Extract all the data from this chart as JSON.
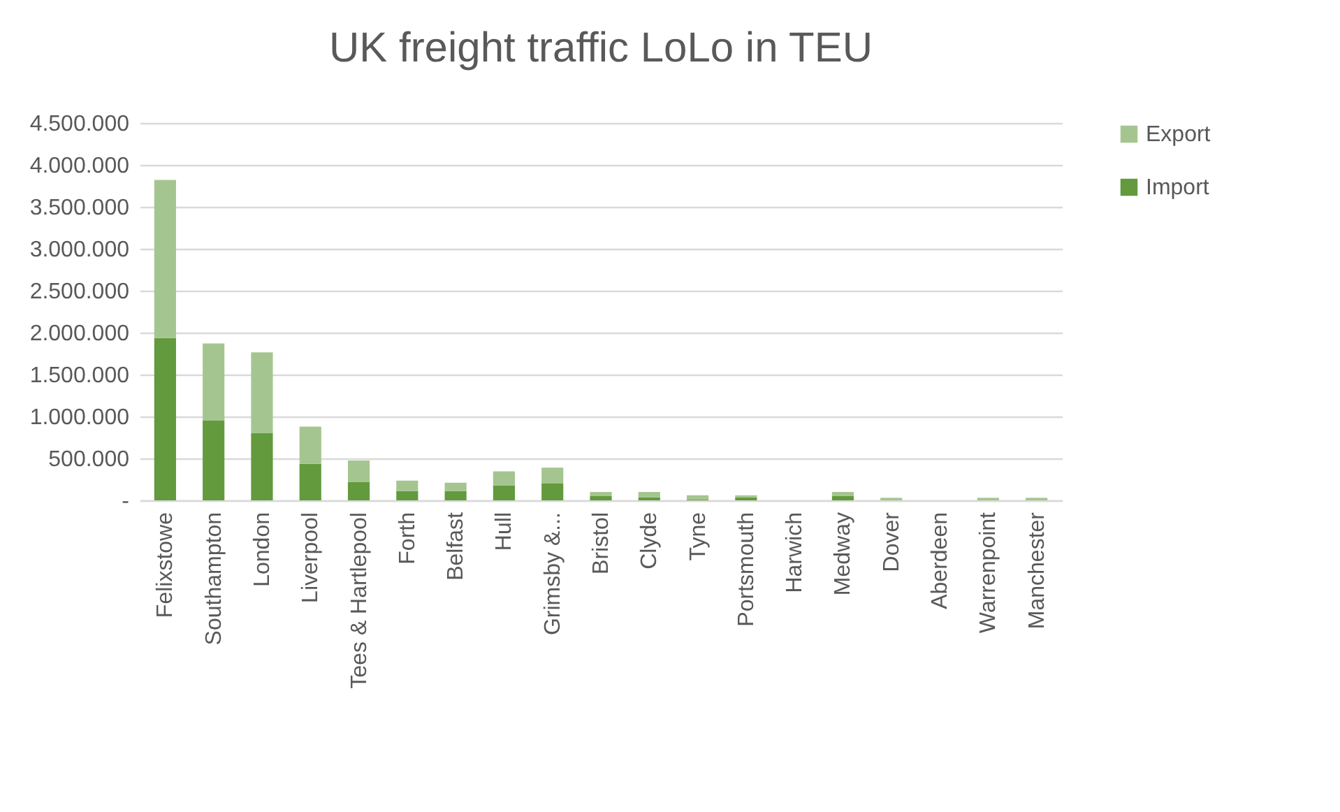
{
  "chart_data": {
    "type": "bar",
    "title": "UK freight traffic LoLo in TEU",
    "categories": [
      "Felixstowe",
      "Southampton",
      "London",
      "Liverpool",
      "Tees & Hartlepool",
      "Forth",
      "Belfast",
      "Hull",
      "Grimsby &...",
      "Bristol",
      "Clyde",
      "Tyne",
      "Portsmouth",
      "Harwich",
      "Medway",
      "Dover",
      "Aberdeen",
      "Warrenpoint",
      "Manchester"
    ],
    "series": [
      {
        "name": "Import",
        "color": "#629a3d",
        "values": [
          1935000,
          950000,
          800000,
          435000,
          220000,
          110000,
          110000,
          180000,
          200000,
          50000,
          35000,
          10000,
          35000,
          0,
          55000,
          0,
          0,
          0,
          0
        ]
      },
      {
        "name": "Export",
        "color": "#a5c590",
        "values": [
          1885000,
          920000,
          965000,
          445000,
          255000,
          125000,
          100000,
          165000,
          190000,
          50000,
          65000,
          50000,
          25000,
          0,
          45000,
          30000,
          0,
          30000,
          30000
        ]
      }
    ],
    "stacked": true,
    "ylim": [
      0,
      4500000
    ],
    "yticks": [
      {
        "value": 0,
        "label": "-"
      },
      {
        "value": 500000,
        "label": "500.000"
      },
      {
        "value": 1000000,
        "label": "1.000.000"
      },
      {
        "value": 1500000,
        "label": "1.500.000"
      },
      {
        "value": 2000000,
        "label": "2.000.000"
      },
      {
        "value": 2500000,
        "label": "2.500.000"
      },
      {
        "value": 3000000,
        "label": "3.000.000"
      },
      {
        "value": 3500000,
        "label": "3.500.000"
      },
      {
        "value": 4000000,
        "label": "4.000.000"
      },
      {
        "value": 4500000,
        "label": "4.500.000"
      }
    ],
    "grid": "y",
    "legend": "right"
  }
}
